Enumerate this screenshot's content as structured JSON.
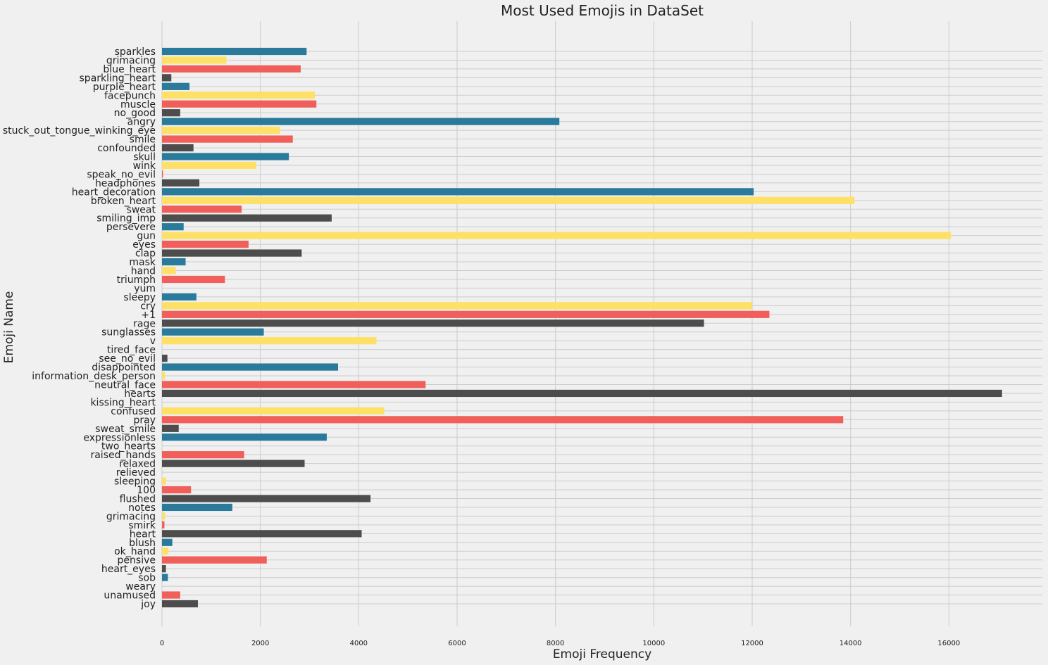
{
  "chart_data": {
    "type": "bar",
    "orientation": "horizontal",
    "title": "Most Used Emojis in DataSet",
    "xlabel": "Emoji Frequency",
    "ylabel": "Emoji Name",
    "xlim": [
      0,
      17900
    ],
    "xticks": [
      0,
      2000,
      4000,
      6000,
      8000,
      10000,
      12000,
      14000,
      16000
    ],
    "grid": true,
    "palette": [
      "#30a2da",
      "#fc4f30",
      "#e5ae38",
      "#6d904f"
    ],
    "bar_colors_cycle": [
      "#4d4d4d",
      "#f05f5a",
      "#ffe066",
      "#2a7b9b"
    ],
    "categories": [
      "joy",
      "unamused",
      "weary",
      "sob",
      "heart_eyes",
      "pensive",
      "ok_hand",
      "blush",
      "heart",
      "smirk",
      "grimacing",
      "notes",
      "flushed",
      "100",
      "sleeping",
      "relieved",
      "relaxed",
      "raised_hands",
      "two_hearts",
      "expressionless",
      "sweat_smile",
      "pray",
      "confused",
      "kissing_heart",
      "hearts",
      "neutral_face",
      "information_desk_person",
      "disappointed",
      "see_no_evil",
      "tired_face",
      "v",
      "sunglasses",
      "rage",
      "+1",
      "cry",
      "sleepy",
      "yum",
      "triumph",
      "hand",
      "mask",
      "clap",
      "eyes",
      "gun",
      "persevere",
      "smiling_imp",
      "sweat",
      "broken_heart",
      "heart_decoration",
      "headphones",
      "speak_no_evil",
      "wink",
      "skull",
      "confounded",
      "smile",
      "stuck_out_tongue_winking_eye",
      "angry",
      "no_good",
      "muscle",
      "facepunch",
      "purple_heart",
      "sparkling_heart",
      "blue_heart",
      "grimacing",
      "sparkles"
    ],
    "values": [
      730,
      370,
      0,
      120,
      80,
      2130,
      130,
      210,
      4060,
      50,
      60,
      1430,
      4240,
      590,
      80,
      0,
      2900,
      1670,
      0,
      3350,
      340,
      13850,
      4520,
      0,
      17080,
      5360,
      60,
      3580,
      110,
      0,
      4360,
      2070,
      11020,
      12350,
      12000,
      700,
      0,
      1280,
      280,
      480,
      2840,
      1760,
      16040,
      440,
      3450,
      1620,
      14080,
      12030,
      760,
      20,
      1920,
      2580,
      640,
      2660,
      2400,
      8080,
      370,
      3140,
      3110,
      560,
      190,
      2820,
      1310,
      2940
    ]
  }
}
